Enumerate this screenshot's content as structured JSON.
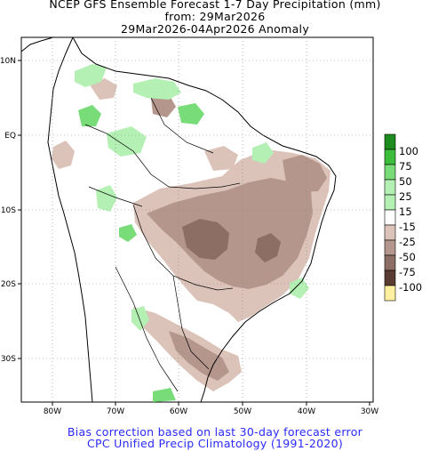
{
  "titles": {
    "line1": "NCEP GFS Ensemble Forecast 1-7 Day Precipitation (mm)",
    "line2": "from: 29Mar2026",
    "line3": "29Mar2026-04Apr2026 Anomaly"
  },
  "axes": {
    "lon_labels": [
      "80W",
      "70W",
      "60W",
      "50W",
      "40W",
      "30W"
    ],
    "lat_labels": [
      "10N",
      "EQ",
      "10S",
      "20S",
      "30S"
    ]
  },
  "legend": {
    "entries": [
      {
        "label": "100",
        "color": "#1e8c1e"
      },
      {
        "label": "75",
        "color": "#3cbe3c"
      },
      {
        "label": "50",
        "color": "#78dc78"
      },
      {
        "label": "25",
        "color": "#b4f0b4"
      },
      {
        "label": "15",
        "color": "#ffffff"
      },
      {
        "label": "-15",
        "color": "#dcc3b9"
      },
      {
        "label": "-25",
        "color": "#b4968c"
      },
      {
        "label": "-50",
        "color": "#8c6e64"
      },
      {
        "label": "-75",
        "color": "#5a3c32"
      },
      {
        "label": "-100",
        "color": "#fff0a0"
      }
    ]
  },
  "footer": {
    "line1": "Bias correction based on last 30-day forecast error",
    "line2": "CPC Unified Precip Climatology (1991-2020)"
  },
  "colors": {
    "wet_light": "#b4f0b4",
    "wet_medium": "#78dc78",
    "dry_light": "#dcc3b9",
    "dry_medium": "#b4968c",
    "dry_dark": "#8c6e64",
    "footer_text": "#2a2aff"
  }
}
